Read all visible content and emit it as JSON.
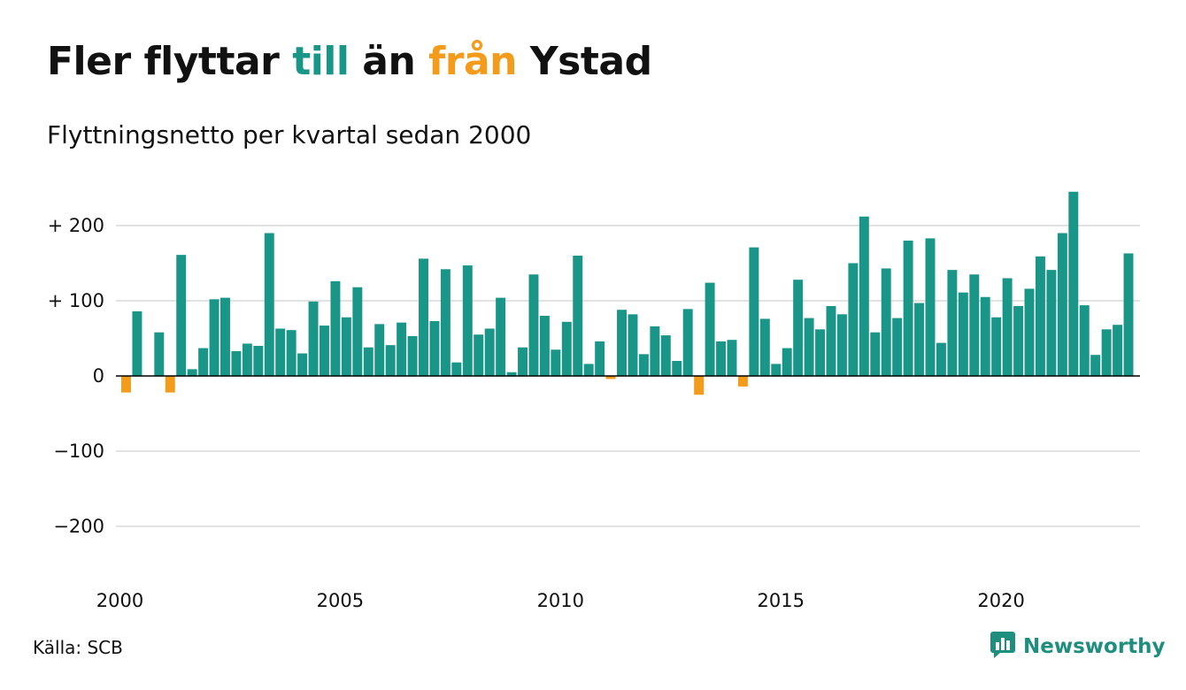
{
  "title": {
    "part1": "Fler flyttar ",
    "part2": "till",
    "part3": " än ",
    "part4": "från",
    "part5": " Ystad"
  },
  "subtitle": "Flyttningsnetto per kvartal sedan 2000",
  "source": "Källa: SCB",
  "brand": "Newsworthy",
  "colors": {
    "positive": "#1a9688",
    "negative": "#f39c1c",
    "grid": "#e2e2e2",
    "axis": "#000000",
    "brand": "#1e8e7e"
  },
  "icons": {
    "brand": "newsworthy-logo-icon"
  },
  "chart_data": {
    "type": "bar",
    "title": "Fler flyttar till än från Ystad",
    "subtitle": "Flyttningsnetto per kvartal sedan 2000",
    "x_start": "2000 Q1",
    "x_step": "1 quarter",
    "xticks": [
      "2000",
      "2005",
      "2010",
      "2015",
      "2020"
    ],
    "yticks": [
      200,
      100,
      0,
      -100,
      -200
    ],
    "ytick_labels": [
      "+ 200",
      "+ 100",
      "0",
      "−100",
      "−200"
    ],
    "ylim": [
      -250,
      250
    ],
    "grid": true,
    "values": [
      -22,
      86,
      0,
      58,
      -22,
      161,
      9,
      37,
      102,
      104,
      33,
      43,
      40,
      190,
      63,
      61,
      30,
      99,
      67,
      126,
      78,
      118,
      38,
      69,
      41,
      71,
      53,
      156,
      73,
      142,
      18,
      147,
      55,
      63,
      104,
      5,
      38,
      135,
      80,
      35,
      72,
      160,
      16,
      46,
      -4,
      88,
      82,
      29,
      66,
      54,
      20,
      89,
      -25,
      124,
      46,
      48,
      -14,
      171,
      76,
      16,
      37,
      128,
      77,
      62,
      93,
      82,
      150,
      212,
      58,
      143,
      77,
      180,
      97,
      183,
      44,
      141,
      111,
      135,
      105,
      78,
      130,
      93,
      116,
      159,
      141,
      190,
      245,
      94,
      28,
      62,
      68,
      163
    ]
  }
}
